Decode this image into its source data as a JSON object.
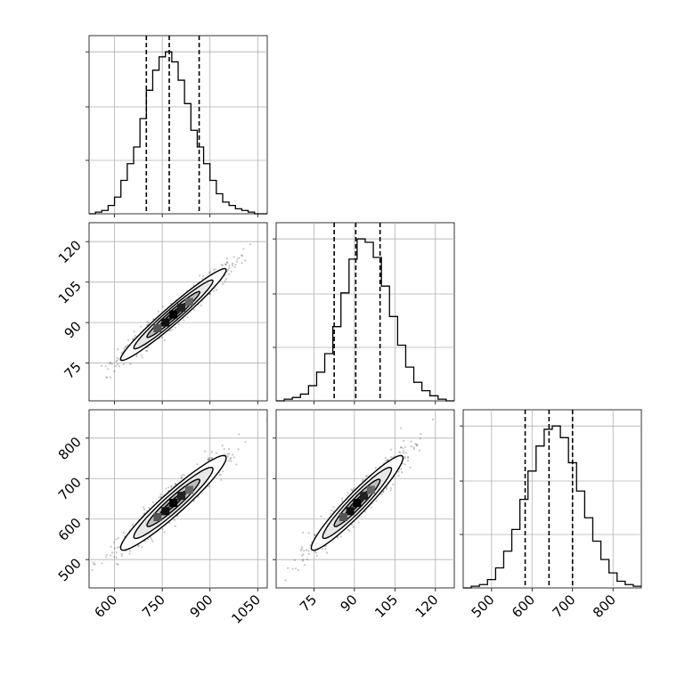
{
  "chart_data": {
    "type": "corner",
    "grid": true,
    "parameters": [
      {
        "range": [
          520,
          1080
        ],
        "ticks": [
          600,
          750,
          900,
          1050
        ],
        "tick_labels": [
          "600",
          "750",
          "900",
          "1050"
        ],
        "quantiles": [
          700,
          772,
          866
        ],
        "hist_bin_edges": [
          520,
          540,
          560,
          580,
          600,
          620,
          640,
          660,
          680,
          700,
          720,
          740,
          760,
          780,
          800,
          820,
          840,
          860,
          880,
          900,
          920,
          940,
          960,
          980,
          1000,
          1020,
          1040,
          1060,
          1080
        ],
        "hist_counts": [
          0,
          1,
          2,
          5,
          10,
          20,
          30,
          40,
          57,
          74,
          86,
          94,
          97,
          91,
          80,
          66,
          50,
          40,
          30,
          20,
          12,
          7,
          5,
          3,
          2,
          1,
          0,
          0
        ]
      },
      {
        "range": [
          61,
          127
        ],
        "ticks": [
          75,
          90,
          105,
          120
        ],
        "tick_labels": [
          "75",
          "90",
          "105",
          "120"
        ],
        "quantiles": [
          82.5,
          90.5,
          99.5
        ],
        "hist_bin_edges": [
          61,
          64,
          67,
          70,
          73,
          76,
          79,
          82,
          85,
          88,
          91,
          94,
          97,
          100,
          103,
          106,
          109,
          112,
          115,
          118,
          121,
          124,
          127
        ],
        "hist_counts": [
          0,
          1,
          2,
          4,
          9,
          17,
          28,
          44,
          64,
          84,
          96,
          94,
          85,
          68,
          50,
          33,
          20,
          11,
          6,
          3,
          1,
          0
        ]
      },
      {
        "range": [
          430,
          870
        ],
        "ticks": [
          500,
          600,
          700,
          800
        ],
        "tick_labels": [
          "500",
          "600",
          "700",
          "800"
        ],
        "quantiles": [
          583,
          642,
          700
        ],
        "hist_bin_edges": [
          430,
          450,
          470,
          490,
          510,
          530,
          550,
          570,
          590,
          610,
          630,
          650,
          670,
          690,
          710,
          730,
          750,
          770,
          790,
          810,
          830,
          850,
          870
        ],
        "hist_counts": [
          0,
          1,
          2,
          5,
          12,
          22,
          35,
          53,
          70,
          85,
          95,
          97,
          90,
          75,
          58,
          42,
          28,
          17,
          9,
          4,
          2,
          1
        ]
      }
    ],
    "pair_plots": [
      {
        "x_param": 0,
        "y_param": 1,
        "center": [
          785,
          93
        ],
        "correlation": 0.97
      },
      {
        "x_param": 0,
        "y_param": 2,
        "center": [
          785,
          640
        ],
        "correlation": 0.95
      },
      {
        "x_param": 1,
        "y_param": 2,
        "center": [
          91,
          640
        ],
        "correlation": 0.95
      }
    ],
    "contour_levels": [
      "0.5σ",
      "1σ",
      "1.5σ",
      "2σ"
    ]
  }
}
